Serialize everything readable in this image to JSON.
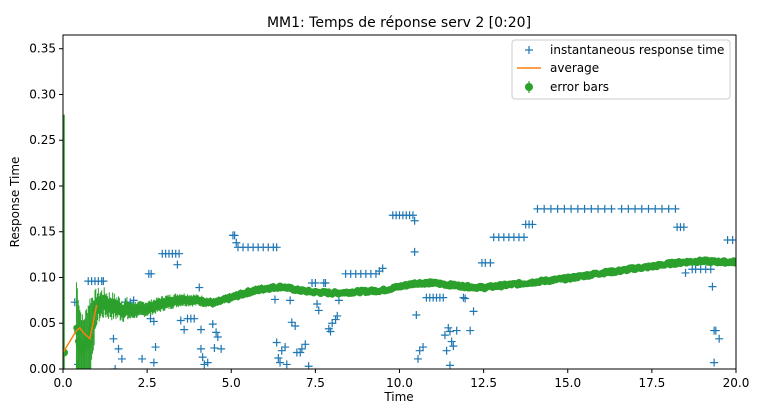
{
  "chart_data": {
    "type": "scatter",
    "title": "MM1: Temps de réponse serv 2 [0:20]",
    "xlabel": "Time",
    "ylabel": "Response Time",
    "xlim": [
      0,
      20
    ],
    "ylim": [
      0,
      0.365
    ],
    "x_ticks": [
      "0.0",
      "2.5",
      "5.0",
      "7.5",
      "10.0",
      "12.5",
      "15.0",
      "17.5",
      "20.0"
    ],
    "y_ticks": [
      "0.00",
      "0.05",
      "0.10",
      "0.15",
      "0.20",
      "0.25",
      "0.30",
      "0.35"
    ],
    "legend_position": "top-right",
    "series": [
      {
        "name": "instantaneous response time",
        "marker": "+",
        "color": "#1f77b4",
        "points": [
          [
            0.35,
            0.073
          ],
          [
            0.45,
            0.005
          ],
          [
            0.75,
            0.096
          ],
          [
            0.85,
            0.096
          ],
          [
            0.95,
            0.096
          ],
          [
            1.05,
            0.096
          ],
          [
            1.15,
            0.096
          ],
          [
            1.2,
            0.096
          ],
          [
            1.5,
            0.033
          ],
          [
            1.55,
            0.0
          ],
          [
            1.65,
            0.022
          ],
          [
            1.75,
            0.011
          ],
          [
            1.85,
            0.073
          ],
          [
            2.0,
            0.073
          ],
          [
            2.1,
            0.075
          ],
          [
            2.35,
            0.011
          ],
          [
            2.55,
            0.104
          ],
          [
            2.62,
            0.104
          ],
          [
            2.6,
            0.055
          ],
          [
            2.7,
            0.052
          ],
          [
            2.75,
            0.024
          ],
          [
            2.7,
            0.007
          ],
          [
            2.95,
            0.126
          ],
          [
            3.05,
            0.126
          ],
          [
            3.15,
            0.126
          ],
          [
            3.25,
            0.126
          ],
          [
            3.35,
            0.126
          ],
          [
            3.45,
            0.126
          ],
          [
            3.4,
            0.114
          ],
          [
            3.5,
            0.053
          ],
          [
            3.6,
            0.043
          ],
          [
            3.7,
            0.055
          ],
          [
            3.8,
            0.055
          ],
          [
            3.9,
            0.055
          ],
          [
            4.05,
            0.089
          ],
          [
            4.1,
            0.043
          ],
          [
            4.1,
            0.022
          ],
          [
            4.15,
            0.013
          ],
          [
            4.2,
            0.005
          ],
          [
            4.3,
            0.007
          ],
          [
            4.45,
            0.049
          ],
          [
            4.5,
            0.023
          ],
          [
            4.55,
            0.04
          ],
          [
            4.6,
            0.035
          ],
          [
            4.7,
            0.022
          ],
          [
            5.05,
            0.146
          ],
          [
            5.1,
            0.146
          ],
          [
            5.15,
            0.138
          ],
          [
            5.2,
            0.133
          ],
          [
            5.35,
            0.133
          ],
          [
            5.5,
            0.133
          ],
          [
            5.65,
            0.133
          ],
          [
            5.8,
            0.133
          ],
          [
            5.95,
            0.133
          ],
          [
            6.1,
            0.133
          ],
          [
            6.25,
            0.133
          ],
          [
            6.35,
            0.133
          ],
          [
            6.3,
            0.076
          ],
          [
            6.35,
            0.029
          ],
          [
            6.4,
            0.012
          ],
          [
            6.45,
            0.007
          ],
          [
            6.5,
            0.02
          ],
          [
            6.6,
            0.024
          ],
          [
            6.65,
            0.005
          ],
          [
            6.75,
            0.075
          ],
          [
            6.8,
            0.051
          ],
          [
            6.9,
            0.047
          ],
          [
            6.95,
            0.018
          ],
          [
            7.05,
            0.018
          ],
          [
            7.1,
            0.022
          ],
          [
            7.2,
            0.027
          ],
          [
            7.3,
            0.003
          ],
          [
            7.4,
            0.094
          ],
          [
            7.5,
            0.094
          ],
          [
            7.55,
            0.071
          ],
          [
            7.6,
            0.064
          ],
          [
            7.75,
            0.094
          ],
          [
            7.8,
            0.094
          ],
          [
            7.9,
            0.044
          ],
          [
            7.95,
            0.041
          ],
          [
            8.0,
            0.05
          ],
          [
            8.1,
            0.054
          ],
          [
            8.15,
            0.058
          ],
          [
            8.2,
            0.075
          ],
          [
            8.4,
            0.104
          ],
          [
            8.55,
            0.104
          ],
          [
            8.7,
            0.104
          ],
          [
            8.85,
            0.104
          ],
          [
            9.0,
            0.104
          ],
          [
            9.15,
            0.104
          ],
          [
            9.3,
            0.104
          ],
          [
            9.4,
            0.107
          ],
          [
            9.5,
            0.11
          ],
          [
            9.8,
            0.168
          ],
          [
            9.9,
            0.168
          ],
          [
            10.0,
            0.168
          ],
          [
            10.1,
            0.168
          ],
          [
            10.2,
            0.168
          ],
          [
            10.3,
            0.168
          ],
          [
            10.4,
            0.168
          ],
          [
            10.45,
            0.162
          ],
          [
            10.45,
            0.128
          ],
          [
            10.5,
            0.059
          ],
          [
            10.55,
            0.011
          ],
          [
            10.6,
            0.02
          ],
          [
            10.7,
            0.024
          ],
          [
            10.8,
            0.078
          ],
          [
            10.9,
            0.078
          ],
          [
            11.0,
            0.078
          ],
          [
            11.1,
            0.078
          ],
          [
            11.2,
            0.078
          ],
          [
            11.3,
            0.078
          ],
          [
            11.35,
            0.037
          ],
          [
            11.4,
            0.02
          ],
          [
            11.45,
            0.045
          ],
          [
            11.5,
            0.041
          ],
          [
            11.55,
            0.03
          ],
          [
            11.5,
            0.004
          ],
          [
            11.6,
            0.025
          ],
          [
            11.7,
            0.042
          ],
          [
            11.9,
            0.078
          ],
          [
            11.95,
            0.077
          ],
          [
            12.1,
            0.042
          ],
          [
            12.2,
            0.063
          ],
          [
            12.45,
            0.116
          ],
          [
            12.55,
            0.116
          ],
          [
            12.7,
            0.116
          ],
          [
            12.8,
            0.144
          ],
          [
            12.95,
            0.144
          ],
          [
            13.1,
            0.144
          ],
          [
            13.25,
            0.144
          ],
          [
            13.4,
            0.144
          ],
          [
            13.55,
            0.144
          ],
          [
            13.7,
            0.144
          ],
          [
            13.75,
            0.158
          ],
          [
            13.85,
            0.158
          ],
          [
            13.95,
            0.158
          ],
          [
            14.1,
            0.175
          ],
          [
            14.3,
            0.175
          ],
          [
            14.5,
            0.175
          ],
          [
            14.7,
            0.175
          ],
          [
            14.9,
            0.175
          ],
          [
            15.1,
            0.175
          ],
          [
            15.3,
            0.175
          ],
          [
            15.5,
            0.175
          ],
          [
            15.7,
            0.175
          ],
          [
            15.9,
            0.175
          ],
          [
            16.1,
            0.175
          ],
          [
            16.3,
            0.175
          ],
          [
            16.6,
            0.175
          ],
          [
            16.8,
            0.175
          ],
          [
            17.0,
            0.175
          ],
          [
            17.2,
            0.175
          ],
          [
            17.4,
            0.175
          ],
          [
            17.6,
            0.175
          ],
          [
            17.8,
            0.175
          ],
          [
            18.0,
            0.175
          ],
          [
            18.2,
            0.175
          ],
          [
            18.25,
            0.155
          ],
          [
            18.35,
            0.155
          ],
          [
            18.45,
            0.155
          ],
          [
            18.5,
            0.105
          ],
          [
            18.7,
            0.109
          ],
          [
            18.8,
            0.109
          ],
          [
            18.95,
            0.109
          ],
          [
            19.1,
            0.109
          ],
          [
            19.25,
            0.109
          ],
          [
            19.3,
            0.09
          ],
          [
            19.35,
            0.042
          ],
          [
            19.4,
            0.042
          ],
          [
            19.35,
            0.007
          ],
          [
            19.5,
            0.033
          ],
          [
            19.75,
            0.141
          ],
          [
            19.9,
            0.141
          ]
        ]
      },
      {
        "name": "average",
        "color": "#ff7f0e",
        "x": [
          0.0,
          0.4,
          0.5,
          0.6,
          0.8,
          1.0
        ],
        "y": [
          0.018,
          0.042,
          0.045,
          0.04,
          0.033,
          0.07
        ]
      },
      {
        "name": "error bars",
        "color": "#2ca02c",
        "x": [
          0.0,
          0.4,
          0.5,
          0.6,
          0.8,
          1.0,
          1.2,
          1.5,
          2.0,
          2.5,
          3.0,
          3.5,
          4.0,
          4.5,
          5.0,
          5.5,
          6.0,
          6.5,
          7.0,
          7.5,
          8.0,
          8.5,
          9.0,
          9.5,
          10.0,
          10.5,
          11.0,
          11.5,
          12.0,
          12.5,
          13.0,
          13.5,
          14.0,
          14.5,
          15.0,
          15.5,
          16.0,
          16.5,
          17.0,
          17.5,
          18.0,
          18.5,
          19.0,
          19.5,
          20.0
        ],
        "y": [
          0.018,
          0.045,
          0.025,
          0.022,
          0.035,
          0.068,
          0.072,
          0.068,
          0.064,
          0.066,
          0.072,
          0.076,
          0.075,
          0.072,
          0.078,
          0.084,
          0.088,
          0.09,
          0.086,
          0.084,
          0.083,
          0.084,
          0.085,
          0.086,
          0.09,
          0.094,
          0.094,
          0.092,
          0.09,
          0.089,
          0.091,
          0.093,
          0.095,
          0.097,
          0.099,
          0.102,
          0.105,
          0.107,
          0.11,
          0.112,
          0.115,
          0.117,
          0.118,
          0.117,
          0.117
        ],
        "err": [
          0.26,
          0.05,
          0.04,
          0.03,
          0.04,
          0.015,
          0.012,
          0.01,
          0.008,
          0.007,
          0.007,
          0.006,
          0.005,
          0.004,
          0.004,
          0.004,
          0.004,
          0.003,
          0.003,
          0.003,
          0.003,
          0.002,
          0.002,
          0.002,
          0.002,
          0.002,
          0.002,
          0.002,
          0.002,
          0.002,
          0.002,
          0.002,
          0.002,
          0.002,
          0.002,
          0.002,
          0.002,
          0.002,
          0.002,
          0.002,
          0.002,
          0.002,
          0.002,
          0.002,
          0.002
        ]
      }
    ]
  }
}
